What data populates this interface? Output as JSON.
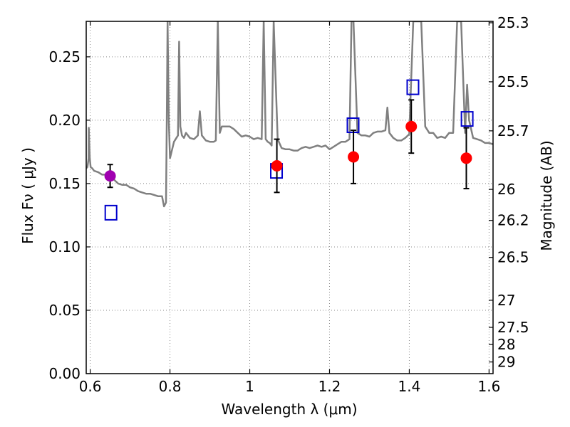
{
  "chart_data": {
    "type": "scatter",
    "title": "",
    "xlabel": "Wavelength  λ (μm)",
    "ylabel": "Flux  Fν ( μJy )",
    "y2label": "Magnitude (AB)",
    "xlim": [
      0.59,
      1.61
    ],
    "ylim": [
      0.0,
      0.278
    ],
    "grid": true,
    "x_ticks": [
      0.6,
      0.8,
      1.0,
      1.2,
      1.4,
      1.6
    ],
    "x_tick_labels": [
      "0.6",
      "0.8",
      "1",
      "1.2",
      "1.4",
      "1.6"
    ],
    "y_ticks": [
      0.0,
      0.05,
      0.1,
      0.15,
      0.2,
      0.25
    ],
    "y_tick_labels": [
      "0.00",
      "0.05",
      "0.10",
      "0.15",
      "0.20",
      "0.25"
    ],
    "y2_ticks": [
      {
        "label": "25.3",
        "flux": 0.2769
      },
      {
        "label": "25.5",
        "flux": 0.2303
      },
      {
        "label": "25.7",
        "flux": 0.1916
      },
      {
        "label": "26",
        "flux": 0.1454
      },
      {
        "label": "26.2",
        "flux": 0.1209
      },
      {
        "label": "26.5",
        "flux": 0.0917
      },
      {
        "label": "27",
        "flux": 0.0579
      },
      {
        "label": "27.5",
        "flux": 0.0365
      },
      {
        "label": "28",
        "flux": 0.023
      },
      {
        "label": "29",
        "flux": 0.0092
      }
    ],
    "colors": {
      "model": "#808080",
      "photometry": "#ff0000",
      "optical_point": "#a000b0",
      "synthetic": "#0000cc",
      "errorbar": "#000000",
      "grid": "#888888"
    },
    "model_spectrum": {
      "x": [
        0.59,
        0.593,
        0.596,
        0.5965,
        0.599,
        0.601,
        0.605,
        0.61,
        0.62,
        0.63,
        0.64,
        0.65,
        0.66,
        0.67,
        0.68,
        0.69,
        0.7,
        0.71,
        0.72,
        0.73,
        0.74,
        0.75,
        0.76,
        0.77,
        0.78,
        0.785,
        0.79,
        0.792,
        0.794,
        0.797,
        0.8,
        0.81,
        0.82,
        0.823,
        0.826,
        0.83,
        0.835,
        0.84,
        0.85,
        0.86,
        0.87,
        0.875,
        0.88,
        0.89,
        0.9,
        0.91,
        0.915,
        0.92,
        0.925,
        0.93,
        0.94,
        0.95,
        0.96,
        0.97,
        0.98,
        0.99,
        1.0,
        1.01,
        1.02,
        1.03,
        1.035,
        1.04,
        1.045,
        1.05,
        1.055,
        1.06,
        1.07,
        1.08,
        1.09,
        1.1,
        1.11,
        1.12,
        1.13,
        1.14,
        1.15,
        1.16,
        1.17,
        1.18,
        1.19,
        1.2,
        1.21,
        1.22,
        1.23,
        1.24,
        1.25,
        1.255,
        1.26,
        1.27,
        1.28,
        1.29,
        1.3,
        1.31,
        1.32,
        1.33,
        1.34,
        1.345,
        1.35,
        1.36,
        1.37,
        1.38,
        1.39,
        1.4,
        1.41,
        1.42,
        1.43,
        1.44,
        1.45,
        1.46,
        1.47,
        1.48,
        1.49,
        1.5,
        1.51,
        1.52,
        1.53,
        1.54,
        1.545,
        1.55,
        1.56,
        1.57,
        1.58,
        1.59,
        1.6,
        1.61
      ],
      "y": [
        0.162,
        0.163,
        0.17,
        0.194,
        0.17,
        0.163,
        0.162,
        0.16,
        0.159,
        0.157,
        0.157,
        0.155,
        0.153,
        0.15,
        0.149,
        0.149,
        0.147,
        0.146,
        0.144,
        0.143,
        0.142,
        0.142,
        0.141,
        0.14,
        0.14,
        0.132,
        0.135,
        0.2,
        0.278,
        0.2,
        0.17,
        0.183,
        0.188,
        0.262,
        0.195,
        0.188,
        0.186,
        0.19,
        0.186,
        0.185,
        0.188,
        0.207,
        0.188,
        0.184,
        0.183,
        0.183,
        0.184,
        0.278,
        0.19,
        0.195,
        0.195,
        0.195,
        0.193,
        0.19,
        0.187,
        0.188,
        0.187,
        0.185,
        0.186,
        0.185,
        0.278,
        0.185,
        0.183,
        0.182,
        0.18,
        0.278,
        0.185,
        0.178,
        0.177,
        0.177,
        0.176,
        0.176,
        0.178,
        0.179,
        0.178,
        0.179,
        0.18,
        0.179,
        0.18,
        0.177,
        0.179,
        0.181,
        0.183,
        0.183,
        0.185,
        0.278,
        0.278,
        0.19,
        0.188,
        0.188,
        0.187,
        0.19,
        0.191,
        0.191,
        0.192,
        0.21,
        0.19,
        0.186,
        0.184,
        0.184,
        0.186,
        0.189,
        0.278,
        0.278,
        0.278,
        0.195,
        0.19,
        0.19,
        0.186,
        0.187,
        0.186,
        0.19,
        0.19,
        0.278,
        0.278,
        0.19,
        0.228,
        0.2,
        0.186,
        0.185,
        0.184,
        0.182,
        0.182,
        0.181
      ]
    },
    "photometry": [
      {
        "x": 0.65,
        "y": 0.156,
        "yerr": 0.009,
        "marker": "circle",
        "color": "#a000b0"
      },
      {
        "x": 1.068,
        "y": 0.164,
        "yerr": 0.021,
        "marker": "circle",
        "color": "#ff0000"
      },
      {
        "x": 1.26,
        "y": 0.171,
        "yerr": 0.021,
        "marker": "circle",
        "color": "#ff0000"
      },
      {
        "x": 1.405,
        "y": 0.195,
        "yerr": 0.021,
        "marker": "circle",
        "color": "#ff0000"
      },
      {
        "x": 1.543,
        "y": 0.17,
        "yerr": 0.024,
        "marker": "circle",
        "color": "#ff0000"
      }
    ],
    "synthetic": [
      {
        "x": 0.652,
        "y": 0.127
      },
      {
        "x": 1.067,
        "y": 0.16
      },
      {
        "x": 1.259,
        "y": 0.196
      },
      {
        "x": 1.409,
        "y": 0.226
      },
      {
        "x": 1.545,
        "y": 0.201
      }
    ]
  }
}
